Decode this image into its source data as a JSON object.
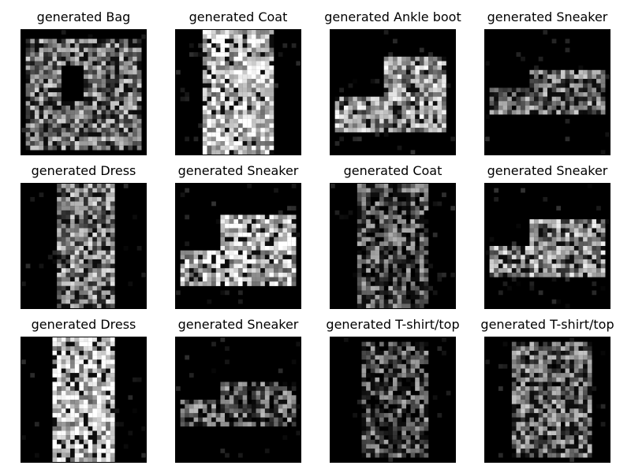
{
  "figure": {
    "panels": [
      {
        "title": "generated Bag",
        "shape": "bag"
      },
      {
        "title": "generated Coat",
        "shape": "coat"
      },
      {
        "title": "generated Ankle boot",
        "shape": "boot"
      },
      {
        "title": "generated Sneaker",
        "shape": "sneaker_low"
      },
      {
        "title": "generated Dress",
        "shape": "dress"
      },
      {
        "title": "generated Sneaker",
        "shape": "sneaker_big"
      },
      {
        "title": "generated Coat",
        "shape": "coat_dim"
      },
      {
        "title": "generated Sneaker",
        "shape": "sneaker_mid"
      },
      {
        "title": "generated Dress",
        "shape": "dress_bright"
      },
      {
        "title": "generated Sneaker",
        "shape": "sneaker_flat"
      },
      {
        "title": "generated T-shirt/top",
        "shape": "tshirt"
      },
      {
        "title": "generated T-shirt/top",
        "shape": "tshirt2"
      }
    ]
  }
}
